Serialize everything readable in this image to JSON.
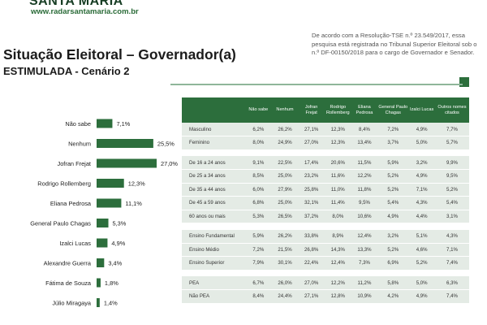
{
  "header": {
    "brand": "SANTA MARIA",
    "site": "www.radarsantamaria.com.br",
    "title": "Situação Eleitoral – Governador(a)",
    "subtitle": "ESTIMULADA - Cenário 2",
    "note": "De acordo com a Resolução-TSE n.º 23.549/2017, essa pesquisa está registrada no Tribunal Superior Eleitoral sob o n.º DF-00150/2018 para o cargo de Governador e Senador."
  },
  "colors": {
    "bar": "#2c6e3c",
    "table_header": "#2c6e3c",
    "row": "#e4ebe5"
  },
  "chart_data": {
    "type": "bar",
    "orientation": "horizontal",
    "title": "Situação Eleitoral – Governador(a)",
    "subtitle": "ESTIMULADA - Cenário 2",
    "categories": [
      "Não sabe",
      "Nenhum",
      "Jofran Frejat",
      "Rodrigo Rollemberg",
      "Eliana Pedrosa",
      "General Paulo Chagas",
      "Izalci Lucas",
      "Alexandre Guerra",
      "Fátima de Souza",
      "Júlio Miragaya"
    ],
    "values": [
      7.1,
      25.5,
      27.0,
      12.3,
      11.1,
      5.3,
      4.9,
      3.4,
      1.8,
      1.4
    ],
    "value_labels": [
      "7,1%",
      "25,5%",
      "27,0%",
      "12,3%",
      "11,1%",
      "5,3%",
      "4,9%",
      "3,4%",
      "1,8%",
      "1,4%"
    ],
    "unit": "%",
    "xlim": [
      0,
      27.0
    ],
    "grid": false,
    "legend": "none"
  },
  "table": {
    "columns": [
      "",
      "Não sabe",
      "Nenhum",
      "Jofran Frejat",
      "Rodrigo Rollemberg",
      "Eliana Pedrosa",
      "General Paulo Chagas",
      "Izalci Lucas",
      "Outros nomes citados"
    ],
    "rows": [
      [
        "Masculino",
        "6,2%",
        "26,2%",
        "27,1%",
        "12,3%",
        "8,4%",
        "7,2%",
        "4,9%",
        "7,7%"
      ],
      [
        "Feminino",
        "8,0%",
        "24,9%",
        "27,0%",
        "12,3%",
        "13,4%",
        "3,7%",
        "5,0%",
        "5,7%"
      ],
      [],
      [
        "De 16 a 24 anos",
        "9,1%",
        "22,5%",
        "17,4%",
        "20,6%",
        "11,5%",
        "5,9%",
        "3,2%",
        "9,9%"
      ],
      [
        "De 25 a 34 anos",
        "8,5%",
        "25,0%",
        "23,2%",
        "11,6%",
        "12,2%",
        "5,2%",
        "4,9%",
        "9,5%"
      ],
      [
        "De 35 a 44 anos",
        "6,0%",
        "27,9%",
        "25,8%",
        "11,0%",
        "11,8%",
        "5,2%",
        "7,1%",
        "5,2%"
      ],
      [
        "De 45 a 59 anos",
        "6,8%",
        "25,0%",
        "32,1%",
        "11,4%",
        "9,5%",
        "5,4%",
        "4,3%",
        "5,4%"
      ],
      [
        "60 anos ou mais",
        "5,3%",
        "26,5%",
        "37,2%",
        "8,0%",
        "10,6%",
        "4,9%",
        "4,4%",
        "3,1%"
      ],
      [],
      [
        "Ensino Fundamental",
        "5,9%",
        "26,2%",
        "33,8%",
        "8,9%",
        "12,4%",
        "3,2%",
        "5,1%",
        "4,3%"
      ],
      [
        "Ensino Médio",
        "7,2%",
        "21,5%",
        "26,8%",
        "14,3%",
        "13,3%",
        "5,2%",
        "4,6%",
        "7,1%"
      ],
      [
        "Ensino Superior",
        "7,9%",
        "30,1%",
        "22,4%",
        "12,4%",
        "7,3%",
        "6,9%",
        "5,2%",
        "7,4%"
      ],
      [],
      [
        "PEA",
        "6,7%",
        "26,0%",
        "27,0%",
        "12,2%",
        "11,2%",
        "5,8%",
        "5,0%",
        "6,3%"
      ],
      [
        "Não PEA",
        "8,4%",
        "24,4%",
        "27,1%",
        "12,8%",
        "10,9%",
        "4,2%",
        "4,9%",
        "7,4%"
      ]
    ]
  }
}
